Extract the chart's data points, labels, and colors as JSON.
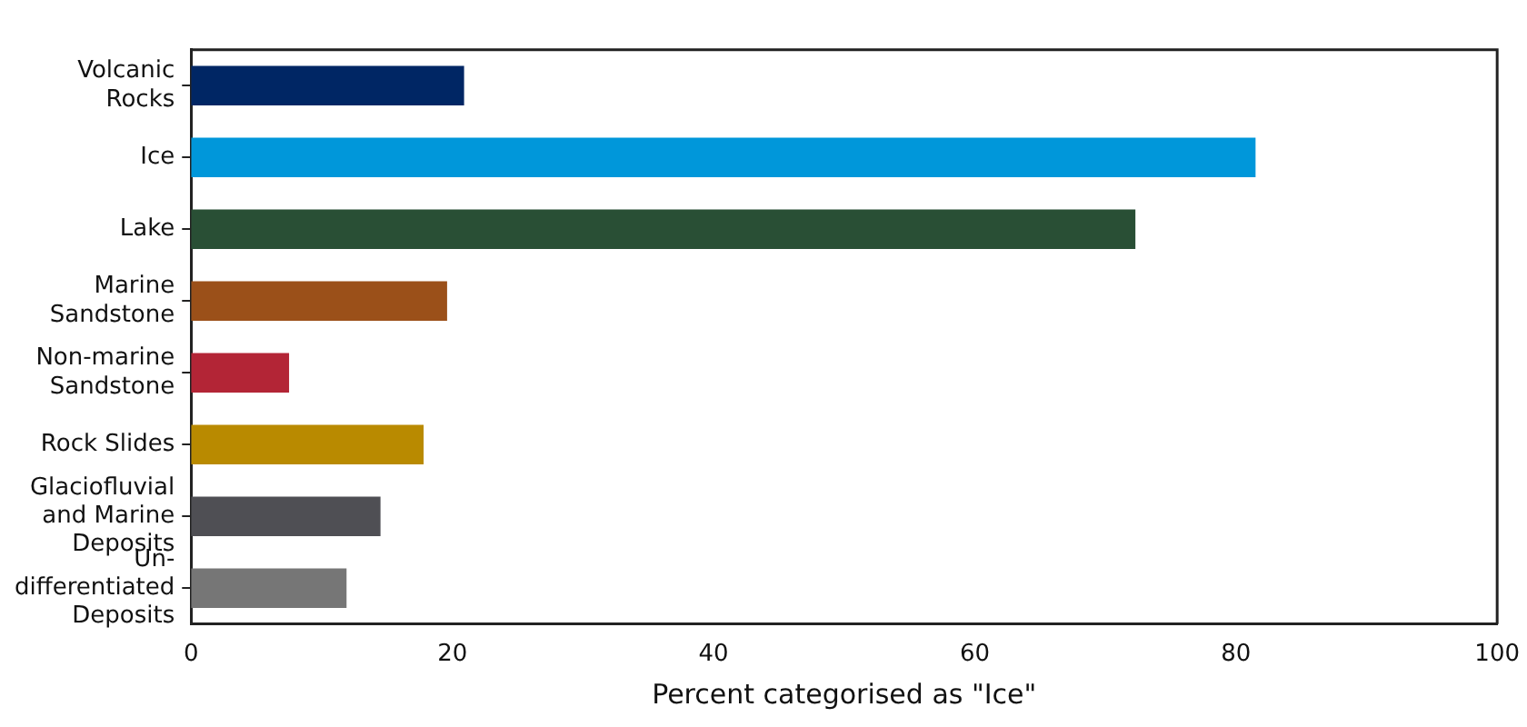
{
  "chart_data": {
    "type": "bar",
    "orientation": "horizontal",
    "xlabel": "Percent categorised as \"Ice\"",
    "categories": [
      "Volcanic\nRocks",
      "Ice",
      "Lake",
      "Marine\nSandstone",
      "Non-marine\nSandstone",
      "Rock Slides",
      "Glaciofluvial\nand Marine\nDeposits",
      "Un-\ndifferentiated\nDeposits"
    ],
    "values": [
      20.9,
      81.5,
      72.3,
      19.6,
      7.5,
      17.8,
      14.5,
      11.9
    ],
    "colors": [
      "#002664",
      "#0097da",
      "#294f35",
      "#9b5019",
      "#b32536",
      "#b98a00",
      "#4f4f54",
      "#767676"
    ],
    "xlim": [
      0,
      100
    ],
    "xticks": [
      0,
      20,
      40,
      60,
      80,
      100
    ],
    "grid": false,
    "legend": false
  }
}
